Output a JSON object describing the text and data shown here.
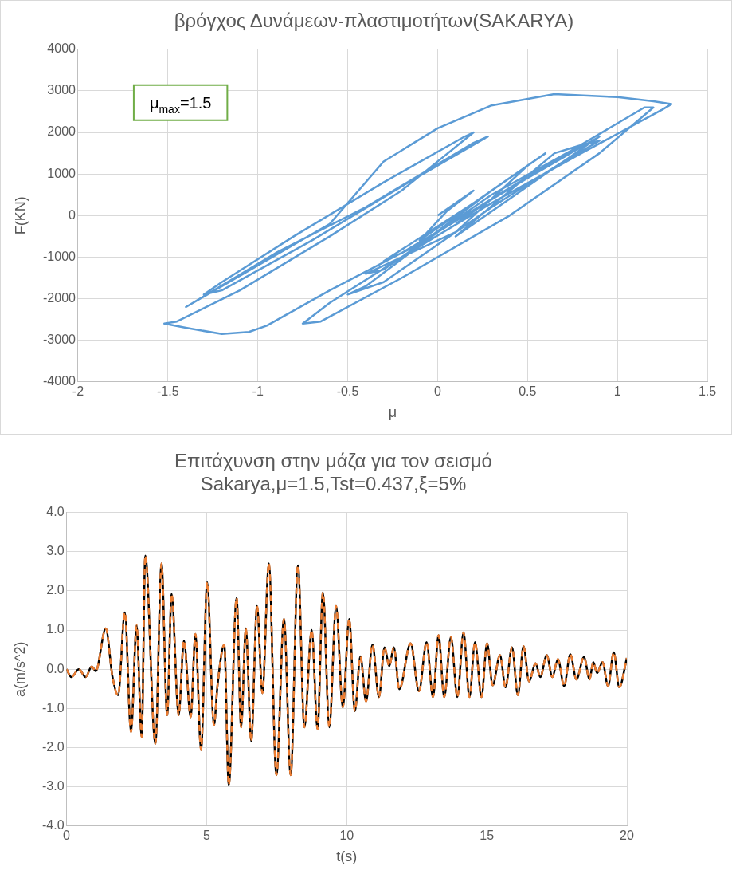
{
  "chart_data": [
    {
      "type": "line",
      "title": "βρόγχος Δυνάμεων-πλαστιμοτήτων(SAKARYA)",
      "xlabel": "μ",
      "ylabel": "F(KN)",
      "annotations": [
        "μ$_{max}$=1.5"
      ],
      "grid": true,
      "legend": false,
      "marker": "none",
      "xlim": [
        -2,
        1.5
      ],
      "xticks": [
        -2,
        -1.5,
        -1,
        -0.5,
        0,
        0.5,
        1,
        1.5
      ],
      "ylim": [
        -4000,
        4000
      ],
      "yticks": [
        -4000,
        -3000,
        -2000,
        -1000,
        0,
        1000,
        2000,
        3000,
        4000
      ],
      "series": [
        {
          "color": "#5b9bd5",
          "x": [
            0,
            0.2,
            0.05,
            -0.1,
            0.1,
            0.4,
            0.2,
            -0.3,
            -0.1,
            0.3,
            0.6,
            0.5,
            0.1,
            -0.4,
            -0.3,
            0.3,
            0.8,
            0.65,
            0.1,
            0.5,
            0.9,
            0.5,
            -0.2,
            -0.6,
            -0.95,
            -1.05,
            -1.2,
            -1.4,
            -1.52,
            -1.45,
            -1.1,
            -0.6,
            -0.2,
            0.2,
            0.15,
            -0.3,
            -0.8,
            -1.2,
            -1.3,
            -1.2,
            -0.7,
            -0.2,
            0.28,
            0.2,
            -0.4,
            -0.9,
            -1.4,
            -1.0,
            -0.6,
            -0.3,
            0,
            0.3,
            0.65,
            1.0,
            1.2,
            1.3,
            1.25,
            0.8,
            0.3,
            -0.2,
            -0.6,
            -0.75,
            -0.65,
            -0.2,
            0.4,
            0.9,
            1.2,
            1.15,
            0.6,
            0,
            -0.4,
            -0.5,
            -0.3,
            0.3,
            0.7,
            0.9,
            0.8,
            0.3,
            0.1
          ],
          "values": [
            0,
            600,
            100,
            -600,
            0,
            900,
            300,
            -1100,
            -700,
            600,
            1500,
            1200,
            -400,
            -1400,
            -1300,
            500,
            1700,
            1500,
            -500,
            700,
            1900,
            900,
            -900,
            -1800,
            -2650,
            -2800,
            -2850,
            -2700,
            -2600,
            -2550,
            -1800,
            -500,
            600,
            2000,
            1900,
            800,
            -500,
            -1600,
            -1900,
            -1800,
            -600,
            700,
            1900,
            1750,
            200,
            -900,
            -2200,
            -1200,
            -200,
            1300,
            2100,
            2650,
            2920,
            2850,
            2750,
            2680,
            2550,
            1500,
            300,
            -1000,
            -2100,
            -2600,
            -2550,
            -1500,
            0,
            1500,
            2600,
            2600,
            1200,
            -400,
            -1700,
            -1900,
            -1600,
            200,
            1300,
            1800,
            1700,
            400,
            -200
          ]
        }
      ]
    },
    {
      "type": "line",
      "title": "Επιτάχυνση στην μάζα για τον σεισμό\nSakarya,μ=1.5,Tst=0.437,ξ=5%",
      "xlabel": "t(s)",
      "ylabel": "a(m/s^2)",
      "grid": true,
      "legend": false,
      "marker": "none",
      "xlim": [
        0,
        20
      ],
      "xticks": [
        0,
        5,
        10,
        15,
        20
      ],
      "ylim": [
        -4,
        4
      ],
      "yticks": [
        {
          "value": -4,
          "label": "-4.0"
        },
        {
          "value": -3,
          "label": "-3.0"
        },
        {
          "value": -2,
          "label": "-2.0"
        },
        {
          "value": -1,
          "label": "-1.0"
        },
        {
          "value": 0,
          "label": "0.0"
        },
        {
          "value": 1,
          "label": "1.0"
        },
        {
          "value": 2,
          "label": "2.0"
        },
        {
          "value": 3,
          "label": "3.0"
        },
        {
          "value": 4,
          "label": "4.0"
        }
      ],
      "x": [
        0,
        0.17,
        0.44,
        0.68,
        0.9,
        1.04,
        1.4,
        1.64,
        1.84,
        2.08,
        2.3,
        2.5,
        2.68,
        2.81,
        3.17,
        3.39,
        3.59,
        3.75,
        4.0,
        4.19,
        4.43,
        4.6,
        4.8,
        5.02,
        5.26,
        5.39,
        5.63,
        5.79,
        6.07,
        6.23,
        6.4,
        6.59,
        6.8,
        6.99,
        7.22,
        7.49,
        7.76,
        8.0,
        8.26,
        8.49,
        8.75,
        8.96,
        9.15,
        9.38,
        9.62,
        9.86,
        10.09,
        10.29,
        10.49,
        10.69,
        10.92,
        11.15,
        11.35,
        11.52,
        11.68,
        11.88,
        12.28,
        12.58,
        12.85,
        13.08,
        13.28,
        13.48,
        13.72,
        13.95,
        14.17,
        14.38,
        14.58,
        14.81,
        15.01,
        15.21,
        15.47,
        15.67,
        15.9,
        16.11,
        16.31,
        16.51,
        16.74,
        16.91,
        17.14,
        17.34,
        17.54,
        17.76,
        17.98,
        18.2,
        18.47,
        18.67,
        18.8,
        18.94,
        19.13,
        19.33,
        19.53,
        19.73,
        20
      ],
      "series": [
        {
          "color": "#000000",
          "line_style": "solid",
          "values": [
            0,
            -0.2,
            0,
            -0.2,
            0.07,
            -0.05,
            1.04,
            -0.2,
            -0.66,
            1.45,
            -1.6,
            1.12,
            -1.73,
            2.9,
            -1.9,
            2.7,
            -1.17,
            1.92,
            -1.17,
            0.73,
            -1.22,
            0.9,
            -2.06,
            2.22,
            -1.43,
            -0.4,
            0.63,
            -2.95,
            1.82,
            -1.48,
            1.04,
            -1.84,
            1.61,
            -0.61,
            2.7,
            -2.7,
            1.28,
            -2.7,
            2.65,
            -1.48,
            1.0,
            -1.53,
            1.96,
            -1.48,
            1.61,
            -0.97,
            1.28,
            -1.07,
            0.33,
            -0.82,
            0.63,
            -0.71,
            0.56,
            0.08,
            0.56,
            -0.51,
            0.66,
            -0.56,
            0.69,
            -0.71,
            0.87,
            -0.71,
            0.82,
            -0.71,
            0.94,
            -0.71,
            0.69,
            -0.71,
            0.66,
            -0.41,
            0.36,
            -0.46,
            0.56,
            -0.66,
            0.59,
            -0.31,
            0.15,
            -0.2,
            0.36,
            -0.2,
            0.26,
            -0.43,
            0.38,
            -0.26,
            0.31,
            -0.26,
            0.18,
            -0.1,
            0.18,
            -0.43,
            0.43,
            -0.46,
            0.29
          ]
        },
        {
          "color": "#ed7d31",
          "line_style": "dashed",
          "values": [
            0,
            -0.2,
            0,
            -0.2,
            0.07,
            -0.05,
            1.04,
            -0.2,
            -0.66,
            1.45,
            -1.6,
            1.12,
            -1.73,
            2.9,
            -1.9,
            2.7,
            -1.17,
            1.92,
            -1.17,
            0.73,
            -1.22,
            0.9,
            -2.06,
            2.22,
            -1.43,
            -0.4,
            0.63,
            -2.95,
            1.82,
            -1.48,
            1.04,
            -1.84,
            1.61,
            -0.61,
            2.7,
            -2.7,
            1.28,
            -2.7,
            2.65,
            -1.48,
            1.0,
            -1.53,
            1.96,
            -1.48,
            1.61,
            -0.97,
            1.28,
            -1.07,
            0.33,
            -0.82,
            0.63,
            -0.71,
            0.56,
            0.08,
            0.56,
            -0.51,
            0.66,
            -0.56,
            0.69,
            -0.71,
            0.87,
            -0.71,
            0.82,
            -0.71,
            0.94,
            -0.71,
            0.69,
            -0.71,
            0.66,
            -0.41,
            0.36,
            -0.46,
            0.56,
            -0.66,
            0.59,
            -0.31,
            0.15,
            -0.2,
            0.36,
            -0.2,
            0.26,
            -0.43,
            0.38,
            -0.26,
            0.31,
            -0.26,
            0.18,
            -0.1,
            0.18,
            -0.43,
            0.43,
            -0.46,
            0.29
          ]
        }
      ]
    }
  ]
}
